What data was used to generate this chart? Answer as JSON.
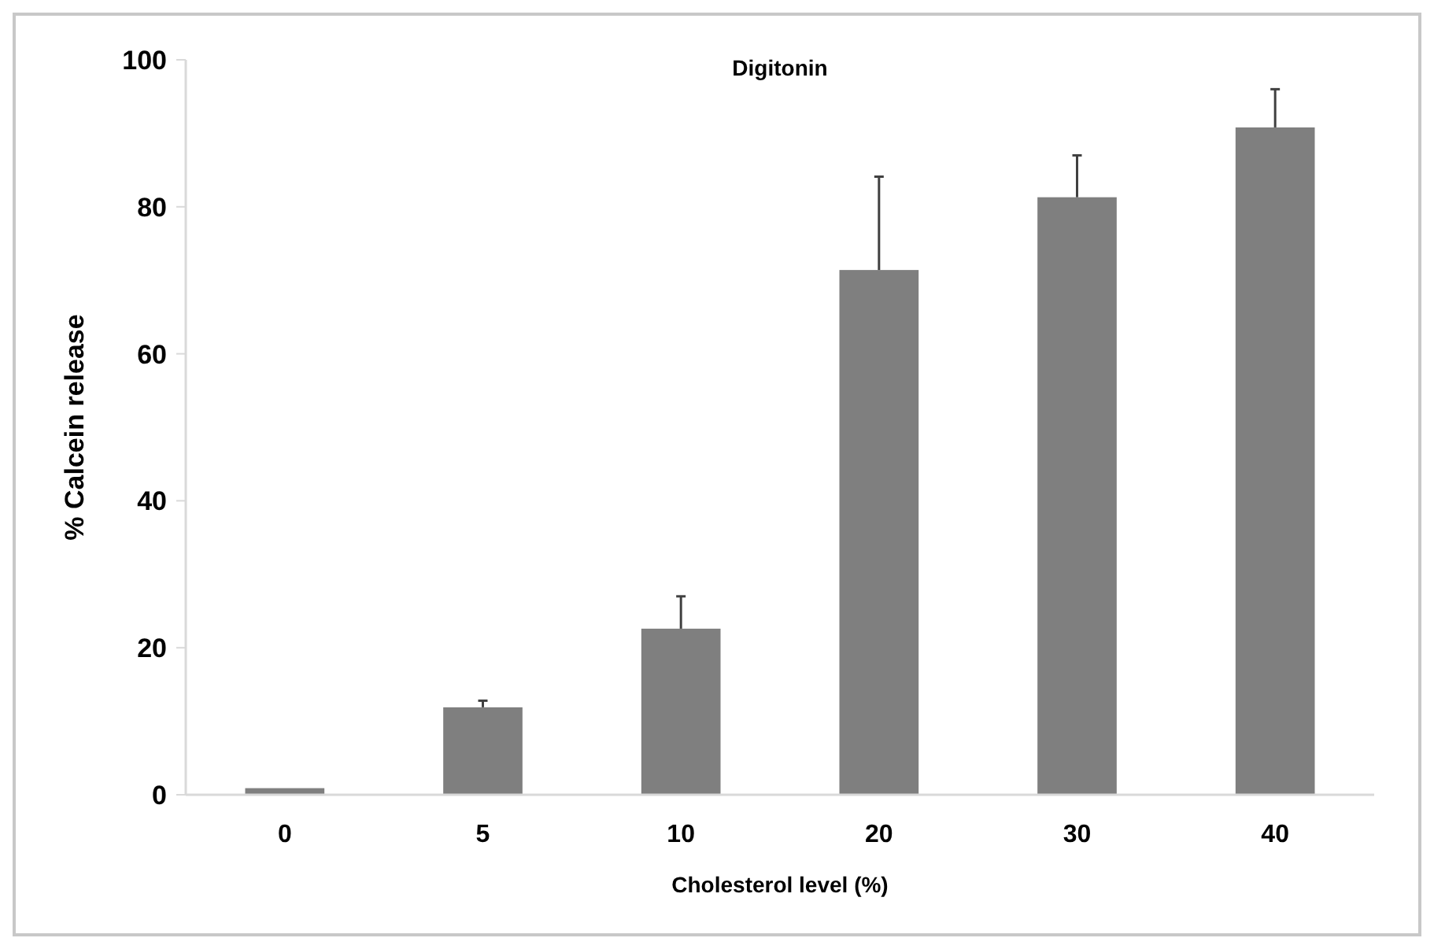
{
  "chart_data": {
    "type": "bar",
    "title": "Digitonin",
    "xlabel": "Cholesterol level (%)",
    "ylabel": "% Calcein release",
    "categories": [
      "0",
      "5",
      "10",
      "20",
      "30",
      "40"
    ],
    "values": [
      0.9,
      11.9,
      22.6,
      71.4,
      81.3,
      90.8
    ],
    "errors": [
      null,
      0.9,
      4.4,
      12.7,
      5.7,
      5.2
    ],
    "color": "#7f7f7f",
    "ylim": [
      0,
      100
    ],
    "yticks": [
      0,
      20,
      40,
      60,
      80,
      100
    ],
    "grid": false
  }
}
